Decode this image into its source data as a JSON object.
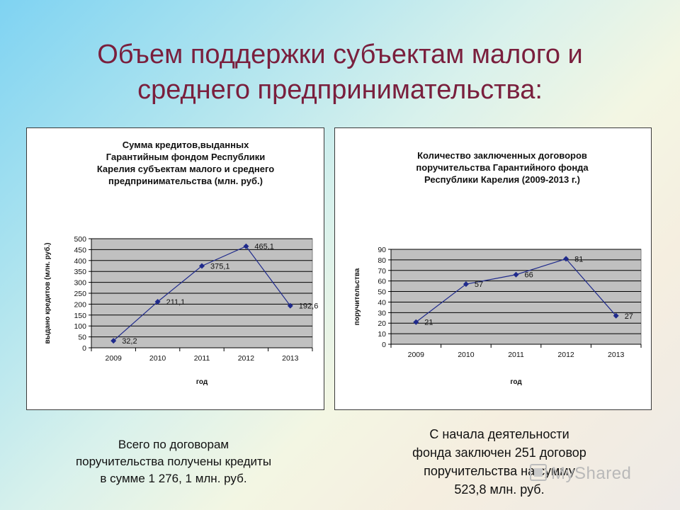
{
  "slide": {
    "title_line1": "Объем поддержки субъектам малого и",
    "title_line2": "среднего предпринимательства:"
  },
  "chart_data": [
    {
      "type": "line",
      "title": [
        "Сумма кредитов,выданных",
        "Гарантийным фондом Республики",
        "Карелия субъектам малого и среднего",
        "предпринимательства (млн. руб.)"
      ],
      "xlabel": "год",
      "ylabel": "выдано кредитов (млн. руб.)",
      "categories": [
        "2009",
        "2010",
        "2011",
        "2012",
        "2013"
      ],
      "values": [
        32.2,
        211.1,
        375.1,
        465.1,
        192.6
      ],
      "data_labels": [
        "32,2",
        "211,1",
        "375,1",
        "465,1",
        "192,6"
      ],
      "ylim": [
        0,
        500
      ],
      "ytick_step": 50,
      "grid": true,
      "legend": "none",
      "colors": {
        "line": "#1f2a8c",
        "marker": "#1f2a8c",
        "plot_bg": "#c0c0c0",
        "grid": "#000000"
      }
    },
    {
      "type": "line",
      "title": [
        "Количество заключенных договоров",
        "поручительства Гарантийного фонда",
        "Республики Карелия (2009-2013 г.)"
      ],
      "xlabel": "год",
      "ylabel": "поручительства",
      "categories": [
        "2009",
        "2010",
        "2011",
        "2012",
        "2013"
      ],
      "values": [
        21,
        57,
        66,
        81,
        27
      ],
      "data_labels": [
        "21",
        "57",
        "66",
        "81",
        "27"
      ],
      "ylim": [
        0,
        90
      ],
      "ytick_step": 10,
      "grid": true,
      "legend": "none",
      "colors": {
        "line": "#1f2a8c",
        "marker": "#1f2a8c",
        "plot_bg": "#c0c0c0",
        "grid": "#000000"
      }
    }
  ],
  "notes": {
    "left": [
      "Всего по договорам",
      "поручительства получены кредиты",
      "в сумме 1 276, 1 млн. руб."
    ],
    "right": [
      "С начала деятельности",
      "фонда  заключен 251 договор",
      "поручительства на сумму",
      "523,8 млн. руб."
    ]
  },
  "watermark": "MyShared"
}
